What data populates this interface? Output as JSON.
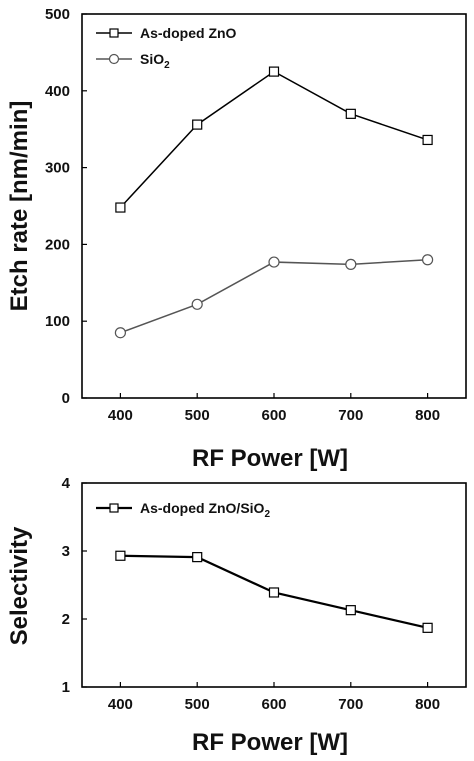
{
  "chart_data": [
    {
      "type": "line",
      "xlabel": "RF Power [W]",
      "ylabel": "Etch rate [nm/min]",
      "x": [
        400,
        500,
        600,
        700,
        800
      ],
      "xticks": [
        "400",
        "500",
        "600",
        "700",
        "800"
      ],
      "yticks": [
        "0",
        "100",
        "200",
        "300",
        "400",
        "500"
      ],
      "xlim": [
        350,
        850
      ],
      "ylim": [
        0,
        500
      ],
      "legend_position": "top-left",
      "series": [
        {
          "name": "As-doped ZnO",
          "marker": "square",
          "color": "#000000",
          "values": [
            248,
            356,
            425,
            370,
            336
          ]
        },
        {
          "name_base": "SiO",
          "name_sub": "2",
          "marker": "circle",
          "color": "#555555",
          "values": [
            85,
            122,
            177,
            174,
            180
          ]
        }
      ]
    },
    {
      "type": "line",
      "xlabel": "RF Power [W]",
      "ylabel": "Selectivity",
      "x": [
        400,
        500,
        600,
        700,
        800
      ],
      "xticks": [
        "400",
        "500",
        "600",
        "700",
        "800"
      ],
      "yticks": [
        "1",
        "2",
        "3",
        "4"
      ],
      "xlim": [
        350,
        850
      ],
      "ylim": [
        1,
        4
      ],
      "legend_position": "top-left",
      "series": [
        {
          "name_base": "As-doped ZnO/SiO",
          "name_sub": "2",
          "marker": "square",
          "color": "#000000",
          "values": [
            2.93,
            2.91,
            2.39,
            2.13,
            1.87
          ]
        }
      ]
    }
  ]
}
